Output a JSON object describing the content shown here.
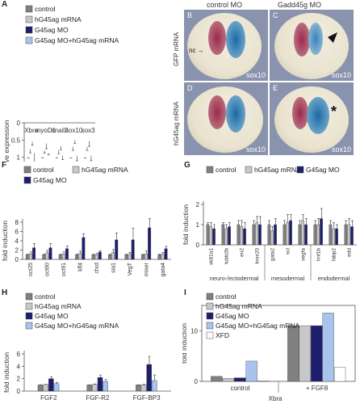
{
  "colors": {
    "control": "#808080",
    "hG45ag_mRNA": "#c8c8c8",
    "G45ag_MO": "#1e1e6e",
    "G45ag_MO_hG45ag_mRNA": "#a9c4ec",
    "XFD": "#ffffff",
    "photo_bg": "#8d97b3"
  },
  "panels": {
    "A": {
      "letter": "A",
      "ylabel": "relative expression"
    },
    "F": {
      "letter": "F",
      "ylabel": "fold induction"
    },
    "G": {
      "letter": "G",
      "ylabel": "fold induction"
    },
    "H": {
      "letter": "H",
      "ylabel": "fold induction"
    },
    "I": {
      "letter": "I",
      "ylabel": "fold induction"
    }
  },
  "photos": {
    "header_left": "control MO",
    "header_right": "Gadd45g MO",
    "side_top": "GFP mRNA",
    "side_bottom": "hG45ag mRNA",
    "items": [
      {
        "letter": "B",
        "stain": "sox10",
        "mark": "nc"
      },
      {
        "letter": "C",
        "stain": "sox10",
        "mark": ""
      },
      {
        "letter": "D",
        "stain": "sox10",
        "mark": ""
      },
      {
        "letter": "E",
        "stain": "sox10",
        "mark": "*"
      }
    ]
  },
  "chart_data": [
    {
      "panel": "A",
      "type": "bar",
      "categories": [
        "Xbra",
        "myoD1",
        "snail2",
        "sox10",
        "sox3"
      ],
      "series": [
        {
          "name": "control",
          "values": [
            1,
            1,
            1,
            1,
            1
          ],
          "err": [
            0.02,
            0.02,
            0.02,
            0.02,
            0.02
          ]
        },
        {
          "name": "hG45ag mRNA",
          "values": [
            0.77,
            0.8,
            0.8,
            0.7,
            0.7
          ],
          "err": [
            0.1,
            0.08,
            0.1,
            0.1,
            0.1
          ]
        },
        {
          "name": "G45ag MO",
          "values": [
            0.55,
            0.6,
            0.68,
            0.5,
            0.53
          ],
          "err": [
            0.1,
            0.15,
            0.1,
            0.1,
            0.15
          ]
        },
        {
          "name": "G45ag MO+hG45ag mRNA",
          "values": [
            0.88,
            0.88,
            0.95,
            0.95,
            0.95
          ],
          "err": [
            0.3,
            0.05,
            0.12,
            0.15,
            0.15
          ]
        }
      ],
      "ylabel": "relative expression",
      "ylim": [
        0,
        1.5
      ],
      "yticks": [
        "0",
        "0.5",
        "1",
        "1.5"
      ],
      "ytick_values": [
        0,
        0.5,
        1,
        1.5
      ],
      "legend": "top-left"
    },
    {
      "panel": "F",
      "type": "bar",
      "categories": [
        "oct25",
        "oct60",
        "oct91",
        "klf4",
        "chrd",
        "sia1",
        "VegT",
        "mixer",
        "gata4"
      ],
      "series": [
        {
          "name": "control",
          "values": [
            1,
            1,
            1,
            1,
            1,
            1,
            1,
            1,
            1
          ],
          "err": [
            0.1,
            0.1,
            0.1,
            0.1,
            0.1,
            0.1,
            0.1,
            0.1,
            0.1
          ]
        },
        {
          "name": "hG45ag mRNA",
          "values": [
            1.2,
            1.4,
            1.2,
            1.3,
            1.0,
            1.5,
            1.1,
            1.2,
            1.1
          ],
          "err": [
            0.4,
            0.5,
            0.4,
            0.5,
            0.3,
            0.6,
            0.4,
            0.6,
            0.4
          ]
        },
        {
          "name": "G45ag MO",
          "values": [
            2.5,
            2.5,
            2.3,
            4.7,
            1.6,
            4.2,
            4.2,
            6.8,
            2.3
          ],
          "err": [
            0.9,
            0.9,
            0.6,
            0.8,
            0.3,
            1.5,
            2.5,
            2.0,
            0.5
          ]
        }
      ],
      "ylabel": "fold induction",
      "ylim": [
        0,
        8
      ],
      "yticks": [
        "0",
        "2",
        "4",
        "6",
        "8"
      ],
      "ytick_values": [
        0,
        2,
        4,
        6,
        8
      ],
      "legend": "top-left"
    },
    {
      "panel": "G",
      "type": "bar",
      "categories": [
        "xk81a1",
        "tubb2b",
        "en2",
        "krox20",
        "gata2",
        "scl",
        "vegfa",
        "hnf1b",
        "fabp2",
        "edd"
      ],
      "groups": [
        "neuro-/ectodermal",
        "mesodermal",
        "endodermal"
      ],
      "series": [
        {
          "name": "control",
          "values": [
            1,
            1,
            1,
            1,
            1,
            1,
            1,
            1,
            1,
            1
          ],
          "err": [
            0.1,
            0.1,
            0.2,
            0.2,
            0.2,
            0.2,
            0.2,
            0.2,
            0.2,
            0.2
          ]
        },
        {
          "name": "hG45ag mRNA",
          "values": [
            0.9,
            0.8,
            0.9,
            1.1,
            0.7,
            1.1,
            1.2,
            1.0,
            0.8,
            1.0
          ],
          "err": [
            0.2,
            0.2,
            0.3,
            0.3,
            0.2,
            0.4,
            0.3,
            0.3,
            0.3,
            0.3
          ]
        },
        {
          "name": "G45ag MO",
          "values": [
            0.8,
            0.9,
            0.8,
            1.0,
            1.0,
            1.2,
            1.0,
            1.3,
            0.8,
            0.9
          ],
          "err": [
            0.2,
            0.2,
            0.3,
            0.4,
            0.3,
            0.3,
            0.3,
            0.5,
            0.2,
            0.3
          ]
        }
      ],
      "ylabel": "fold induction",
      "ylim": [
        0,
        2
      ],
      "yticks": [
        "0",
        "1",
        "2"
      ],
      "ytick_values": [
        0,
        1,
        2
      ],
      "legend": "top-left"
    },
    {
      "panel": "H",
      "type": "bar",
      "categories": [
        "FGF2",
        "FGF-R2",
        "FGF-BP3"
      ],
      "series": [
        {
          "name": "control",
          "values": [
            1,
            1,
            1
          ],
          "err": [
            0.02,
            0.02,
            0.02
          ]
        },
        {
          "name": "hG45ag mRNA",
          "values": [
            1.05,
            1.1,
            1.0
          ],
          "err": [
            0.05,
            0.05,
            0.1
          ]
        },
        {
          "name": "G45ag MO",
          "values": [
            2.0,
            2.2,
            4.3
          ],
          "err": [
            0.3,
            0.4,
            1.3
          ]
        },
        {
          "name": "G45ag MO+hG45ag mRNA",
          "values": [
            1.2,
            1.55,
            1.7
          ],
          "err": [
            0.2,
            0.3,
            0.9
          ]
        }
      ],
      "ylabel": "fold induction",
      "ylim": [
        0,
        6
      ],
      "yticks": [
        "0",
        "2",
        "4",
        "6"
      ],
      "ytick_values": [
        0,
        2,
        4,
        6
      ],
      "legend": "top-left"
    },
    {
      "panel": "I",
      "type": "bar",
      "categories": [
        "control",
        "+ FGF8"
      ],
      "group_label": "Xbra",
      "series": [
        {
          "name": "control",
          "values": [
            1,
            11
          ]
        },
        {
          "name": "hG45ag mRNA",
          "values": [
            0.6,
            11
          ]
        },
        {
          "name": "G45ag MO",
          "values": [
            0.7,
            11
          ]
        },
        {
          "name": "G45ag MO+hG45ag mRNA",
          "values": [
            4,
            13.5
          ]
        },
        {
          "name": "XFD",
          "values": [
            0.1,
            2.8
          ]
        }
      ],
      "ylabel": "fold induction",
      "ylim": [
        0,
        15
      ],
      "yticks": [
        "0",
        "10"
      ],
      "ytick_values": [
        0,
        10
      ],
      "legend": "top-left"
    }
  ]
}
